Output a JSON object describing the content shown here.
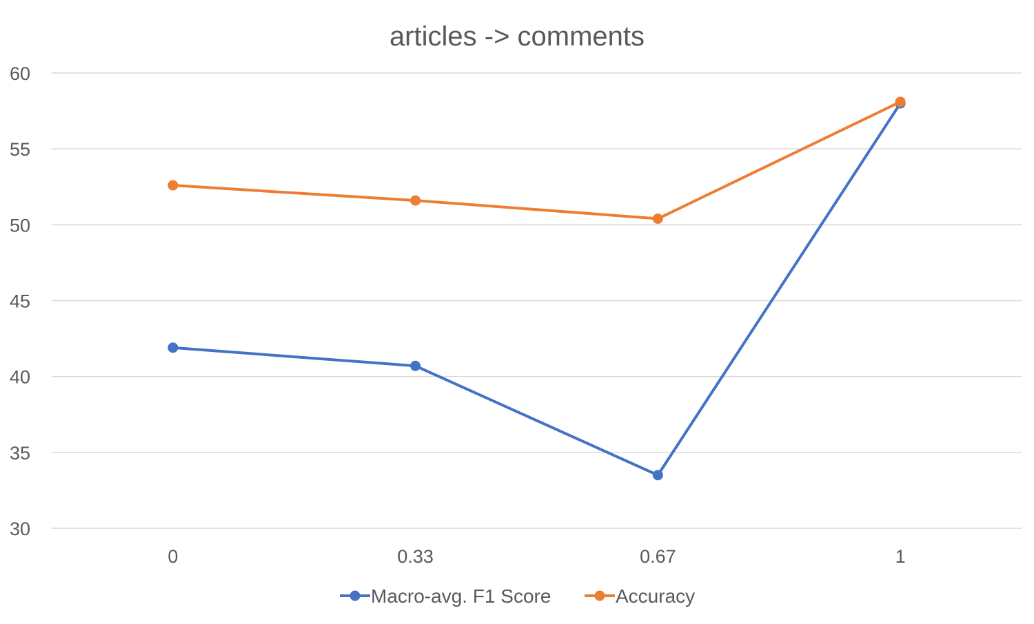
{
  "chart_data": {
    "type": "line",
    "title": "articles -> comments",
    "xlabel": "",
    "ylabel": "",
    "categories": [
      "0",
      "0.33",
      "0.67",
      "1"
    ],
    "ylim": [
      30,
      60
    ],
    "yticks": [
      30,
      35,
      40,
      45,
      50,
      55,
      60
    ],
    "grid": "horizontal",
    "legend": "bottom",
    "series": [
      {
        "name": "Macro-avg. F1 Score",
        "color": "#4472c4",
        "values": [
          41.9,
          40.7,
          33.5,
          58.0
        ]
      },
      {
        "name": "Accuracy",
        "color": "#ed7d31",
        "values": [
          52.6,
          51.6,
          50.4,
          58.1
        ]
      }
    ]
  }
}
